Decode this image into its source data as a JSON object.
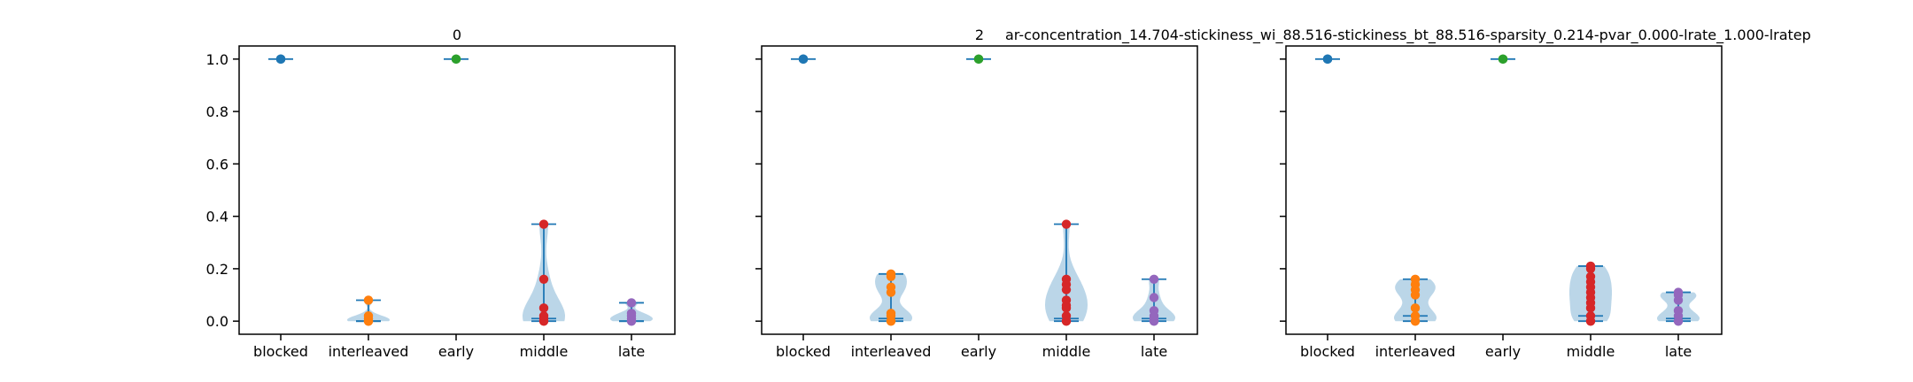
{
  "figure": {
    "suptitle": "ar-concentration_14.704-stickiness_wi_88.516-stickiness_bt_88.516-sparsity_0.214-pvar_0.000-lrate_1.000-lratep"
  },
  "chart_data": [
    {
      "type": "violin",
      "title": "0",
      "categories": [
        "blocked",
        "interleaved",
        "early",
        "middle",
        "late"
      ],
      "ylim": [
        -0.05,
        1.05
      ],
      "yticks": [
        "0.0",
        "0.2",
        "0.4",
        "0.6",
        "0.8",
        "1.0"
      ],
      "series": [
        {
          "category": "blocked",
          "color": "#1f77b4",
          "points": [
            1.0,
            1.0,
            1.0
          ],
          "min": 1.0,
          "max": 1.0,
          "median": 1.0
        },
        {
          "category": "interleaved",
          "color": "#ff7f0e",
          "points": [
            0.0,
            0.0,
            0.0,
            0.01,
            0.02,
            0.08
          ],
          "min": 0.0,
          "max": 0.08,
          "median": 0.0
        },
        {
          "category": "early",
          "color": "#2ca02c",
          "points": [
            1.0,
            1.0
          ],
          "min": 1.0,
          "max": 1.0,
          "median": 1.0
        },
        {
          "category": "middle",
          "color": "#d62728",
          "points": [
            0.0,
            0.0,
            0.01,
            0.02,
            0.05,
            0.16,
            0.37
          ],
          "min": 0.0,
          "max": 0.37,
          "median": 0.01
        },
        {
          "category": "late",
          "color": "#9467bd",
          "points": [
            0.0,
            0.0,
            0.01,
            0.02,
            0.03,
            0.07
          ],
          "min": 0.0,
          "max": 0.07,
          "median": 0.0
        }
      ]
    },
    {
      "type": "violin",
      "title": "2",
      "categories": [
        "blocked",
        "interleaved",
        "early",
        "middle",
        "late"
      ],
      "ylim": [
        -0.05,
        1.05
      ],
      "yticks": [
        "0.0",
        "0.2",
        "0.4",
        "0.6",
        "0.8",
        "1.0"
      ],
      "series": [
        {
          "category": "blocked",
          "color": "#1f77b4",
          "points": [
            1.0,
            1.0,
            1.0
          ],
          "min": 1.0,
          "max": 1.0,
          "median": 1.0
        },
        {
          "category": "interleaved",
          "color": "#ff7f0e",
          "points": [
            0.0,
            0.0,
            0.02,
            0.03,
            0.11,
            0.13,
            0.17,
            0.18
          ],
          "min": 0.0,
          "max": 0.18,
          "median": 0.01
        },
        {
          "category": "early",
          "color": "#2ca02c",
          "points": [
            1.0,
            1.0
          ],
          "min": 1.0,
          "max": 1.0,
          "median": 1.0
        },
        {
          "category": "middle",
          "color": "#d62728",
          "points": [
            0.0,
            0.0,
            0.02,
            0.05,
            0.06,
            0.08,
            0.12,
            0.14,
            0.16,
            0.37
          ],
          "min": 0.0,
          "max": 0.37,
          "median": 0.01
        },
        {
          "category": "late",
          "color": "#9467bd",
          "points": [
            0.0,
            0.0,
            0.01,
            0.02,
            0.04,
            0.09,
            0.16
          ],
          "min": 0.0,
          "max": 0.16,
          "median": 0.01
        }
      ]
    },
    {
      "type": "violin",
      "title": "",
      "categories": [
        "blocked",
        "interleaved",
        "early",
        "middle",
        "late"
      ],
      "ylim": [
        -0.05,
        1.05
      ],
      "yticks": [
        "0.0",
        "0.2",
        "0.4",
        "0.6",
        "0.8",
        "1.0"
      ],
      "series": [
        {
          "category": "blocked",
          "color": "#1f77b4",
          "points": [
            1.0,
            1.0,
            1.0
          ],
          "min": 1.0,
          "max": 1.0,
          "median": 1.0
        },
        {
          "category": "interleaved",
          "color": "#ff7f0e",
          "points": [
            0.0,
            0.0,
            0.02,
            0.05,
            0.1,
            0.12,
            0.14,
            0.16
          ],
          "min": 0.0,
          "max": 0.16,
          "median": 0.02
        },
        {
          "category": "early",
          "color": "#2ca02c",
          "points": [
            1.0,
            1.0
          ],
          "min": 1.0,
          "max": 1.0,
          "median": 1.0
        },
        {
          "category": "middle",
          "color": "#d62728",
          "points": [
            0.0,
            0.0,
            0.02,
            0.05,
            0.07,
            0.09,
            0.11,
            0.13,
            0.15,
            0.17,
            0.2,
            0.21
          ],
          "min": 0.0,
          "max": 0.21,
          "median": 0.02
        },
        {
          "category": "late",
          "color": "#9467bd",
          "points": [
            0.0,
            0.0,
            0.02,
            0.04,
            0.08,
            0.1,
            0.11
          ],
          "min": 0.0,
          "max": 0.11,
          "median": 0.01
        }
      ]
    }
  ]
}
